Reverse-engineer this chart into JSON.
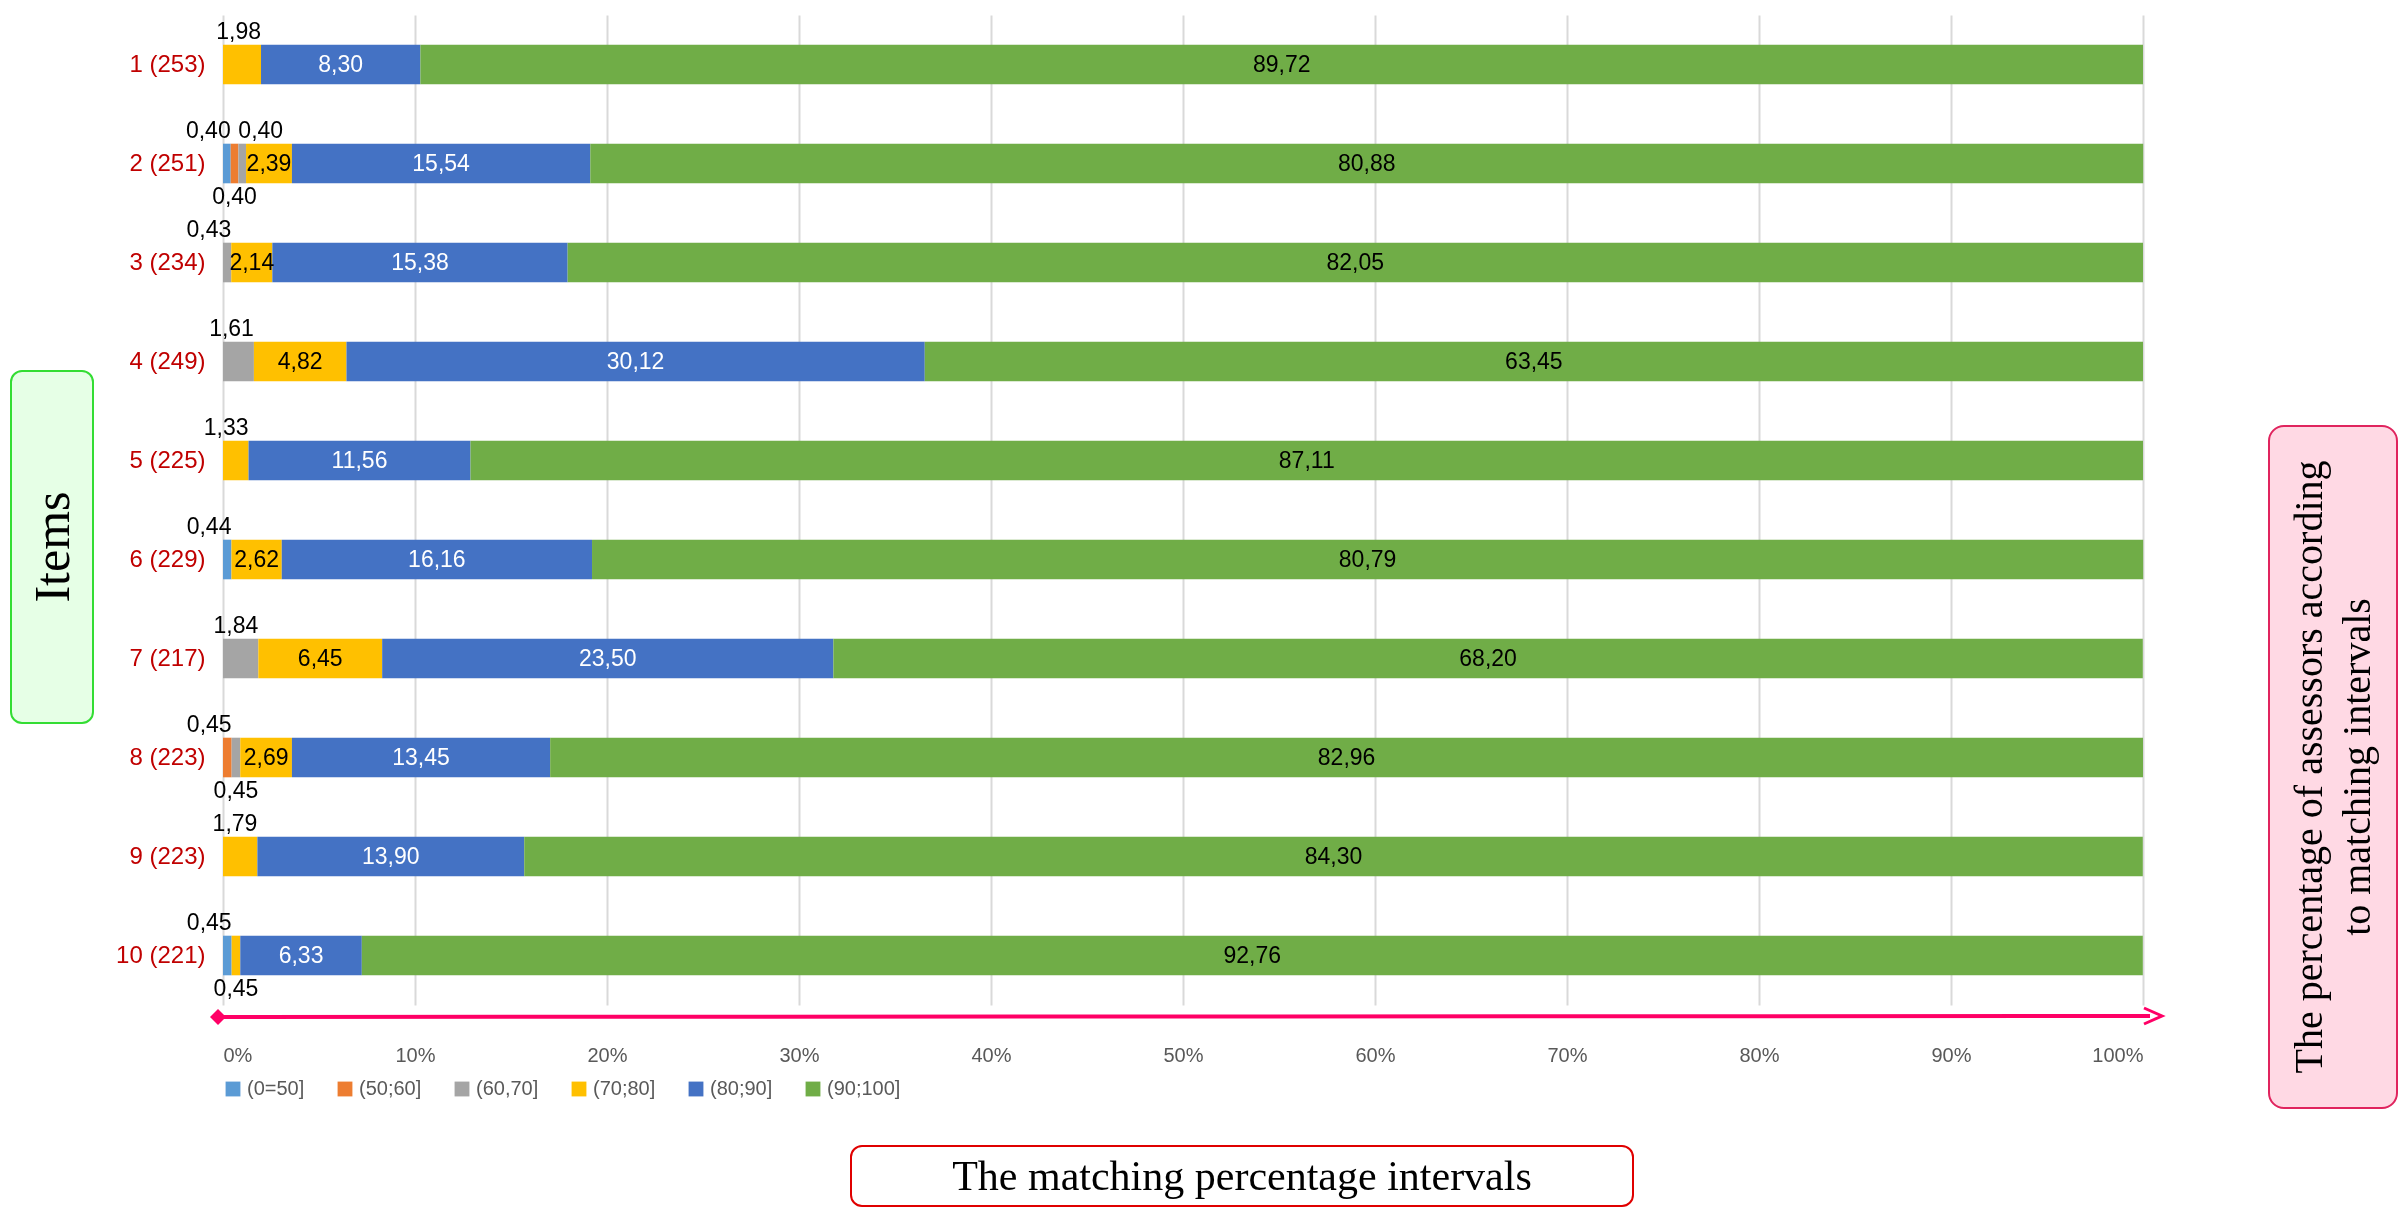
{
  "chart_data": {
    "type": "bar",
    "orientation": "horizontal",
    "stacked": true,
    "grid": "x",
    "legend": "bottom",
    "xlabel": "The matching percentage intervals",
    "ylabel": "Items",
    "annotations": [
      "The percentage of assessors according to matching intervals"
    ],
    "categories": [
      "1 (253)",
      "2 (251)",
      "3 (234)",
      "4 (249)",
      "5 (225)",
      "6 (229)",
      "7 (217)",
      "8 (223)",
      "9 (223)",
      "10 (221)"
    ],
    "xlim": [
      0,
      100
    ],
    "xticks": [
      {
        "value": 0,
        "label": "0%"
      },
      {
        "value": 10,
        "label": "10%"
      },
      {
        "value": 20,
        "label": "20%"
      },
      {
        "value": 30,
        "label": "30%"
      },
      {
        "value": 40,
        "label": "40%"
      },
      {
        "value": 50,
        "label": "50%"
      },
      {
        "value": 60,
        "label": "60%"
      },
      {
        "value": 70,
        "label": "70%"
      },
      {
        "value": 80,
        "label": "80%"
      },
      {
        "value": 90,
        "label": "90%"
      },
      {
        "value": 100,
        "label": "100%"
      }
    ],
    "series": [
      {
        "name": "(0=50]",
        "color": "#5b9bd5",
        "values": [
          null,
          0.4,
          null,
          null,
          null,
          0.44,
          null,
          null,
          null,
          0.45
        ],
        "value_labels": [
          null,
          "0,40",
          null,
          null,
          null,
          "0,44",
          null,
          null,
          null,
          "0,45"
        ]
      },
      {
        "name": "(50;60]",
        "color": "#ed7d31",
        "values": [
          null,
          0.4,
          null,
          null,
          null,
          null,
          null,
          0.45,
          null,
          null
        ],
        "value_labels": [
          null,
          "0,40",
          null,
          null,
          null,
          null,
          null,
          "0,45",
          null,
          null
        ]
      },
      {
        "name": "(60,70]",
        "color": "#a5a5a5",
        "values": [
          null,
          0.4,
          0.43,
          1.61,
          null,
          null,
          1.84,
          0.45,
          null,
          null
        ],
        "value_labels": [
          null,
          "0,40",
          "0,43",
          "1,61",
          null,
          null,
          "1,84",
          "0,45",
          null,
          null
        ]
      },
      {
        "name": "(70;80]",
        "color": "#ffc000",
        "values": [
          1.98,
          2.39,
          2.14,
          4.82,
          1.33,
          2.62,
          6.45,
          2.69,
          1.79,
          0.45
        ],
        "value_labels": [
          "1,98",
          "2,39",
          "2,14",
          "4,82",
          "1,33",
          "2,62",
          "6,45",
          "2,69",
          "1,79",
          "0,45"
        ]
      },
      {
        "name": "(80;90]",
        "color": "#4472c4",
        "values": [
          8.3,
          15.54,
          15.38,
          30.12,
          11.56,
          16.16,
          23.5,
          13.45,
          13.9,
          6.33
        ],
        "value_labels": [
          "8,30",
          "15,54",
          "15,38",
          "30,12",
          "11,56",
          "16,16",
          "23,50",
          "13,45",
          "13,90",
          "6,33"
        ]
      },
      {
        "name": "(90;100]",
        "color": "#70ad47",
        "values": [
          89.72,
          80.88,
          82.05,
          63.45,
          87.11,
          80.79,
          68.2,
          82.96,
          84.3,
          92.76
        ],
        "value_labels": [
          "89,72",
          "80,88",
          "82,05",
          "63,45",
          "87,11",
          "80,79",
          "68,20",
          "82,96",
          "84,30",
          "92,76"
        ]
      }
    ]
  }
}
